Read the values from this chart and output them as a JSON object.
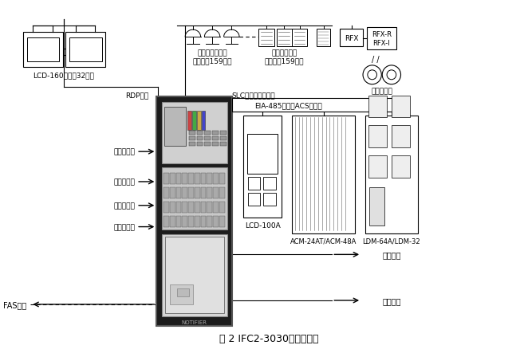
{
  "title": "图 2 IFC2-3030系统原理图",
  "bg_color": "#ffffff",
  "lcd160_label": "LCD-160（最多32个）",
  "rdp_label": "RDP接口",
  "slc_label": "SLC接口（十回路）",
  "eia_label": "EIA-485接口（ACS模式）",
  "detector_label": "各型智能探测器\n（每回路159个）",
  "module_label": "各型智能模块\n（每回路159个）",
  "wireless_label": "无线探测器",
  "rfx_label": "RFX",
  "rfxri_label": "RFX-R\nRFX-I",
  "relay_labels": [
    "火警继电器",
    "故障继电器",
    "监管继电器",
    "安防继电器"
  ],
  "lcd100a_label": "LCD-100A",
  "acm_label": "ACM-24AT/ACM-48A",
  "ldm_label": "LDM-64A/LDM-32",
  "twowire_label": "两线电话",
  "audio_label": "音频输出",
  "fas_label": "FAS网络",
  "notifier_label": "NOTIFIER"
}
